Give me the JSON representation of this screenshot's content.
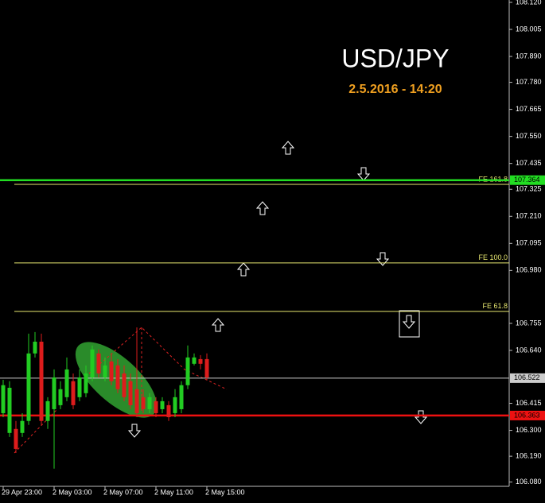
{
  "chart_data": {
    "type": "candlestick",
    "title": "USD/JPY",
    "subtitle": "2.5.2016 - 14:20",
    "up_color": "#22cc22",
    "down_color": "#dd1c1c",
    "categories": [
      "29 Apr 23:00",
      null,
      null,
      null,
      null,
      null,
      null,
      null,
      "2 May 03:00",
      null,
      null,
      null,
      null,
      null,
      null,
      null,
      "2 May 07:00",
      null,
      null,
      null,
      null,
      null,
      null,
      null,
      "2 May 11:00",
      null,
      null,
      null,
      null,
      null,
      null,
      null,
      "2 May 15:00"
    ],
    "open": [
      106.373,
      106.289,
      106.306,
      106.289,
      106.34,
      106.627,
      106.677,
      106.34,
      106.39,
      106.407,
      106.441,
      106.509,
      106.441,
      106.458,
      106.525,
      106.627,
      106.525,
      106.593,
      106.576,
      106.542,
      106.509,
      106.475,
      106.441,
      106.39,
      106.424,
      106.39,
      106.407,
      106.373,
      106.39,
      106.492,
      106.583,
      106.603,
      106.603
    ],
    "high": [
      106.515,
      106.509,
      106.34,
      106.373,
      106.711,
      106.718,
      106.711,
      106.441,
      106.559,
      106.509,
      106.61,
      106.542,
      106.559,
      106.576,
      106.661,
      106.644,
      106.61,
      106.627,
      106.603,
      106.576,
      106.542,
      106.738,
      106.475,
      106.458,
      106.441,
      106.441,
      106.424,
      106.475,
      106.509,
      106.661,
      106.627,
      106.62,
      106.627
    ],
    "low": [
      106.356,
      106.272,
      106.204,
      106.272,
      106.323,
      106.61,
      106.323,
      106.306,
      106.137,
      106.39,
      106.424,
      106.39,
      106.424,
      106.441,
      106.509,
      106.525,
      106.509,
      106.492,
      106.458,
      106.424,
      106.39,
      106.356,
      106.373,
      106.373,
      106.356,
      106.373,
      106.34,
      106.356,
      106.373,
      106.475,
      106.576,
      106.559,
      106.515
    ],
    "close": [
      106.492,
      106.481,
      106.221,
      106.34,
      106.627,
      106.677,
      106.34,
      106.424,
      106.525,
      106.475,
      106.559,
      106.407,
      106.525,
      106.542,
      106.644,
      106.542,
      106.576,
      106.509,
      106.475,
      106.441,
      106.407,
      106.373,
      106.39,
      106.441,
      106.373,
      106.424,
      106.356,
      106.441,
      106.492,
      106.61,
      106.61,
      106.583,
      106.525
    ],
    "ylim": [
      106.062,
      108.13
    ],
    "yticks": [
      {
        "value": 108.12,
        "label": "108.120"
      },
      108.005,
      {
        "value": 107.89,
        "label": "107.890"
      },
      {
        "value": 107.78,
        "label": "107.780"
      },
      107.665,
      {
        "value": 107.55,
        "label": "107.550"
      },
      107.435,
      107.325,
      {
        "value": 107.21,
        "label": "107.210"
      },
      107.095,
      {
        "value": 106.98,
        "label": "106.980"
      },
      106.755,
      {
        "value": 106.64,
        "label": "106.640"
      },
      106.415,
      {
        "value": 106.3,
        "label": "106.300"
      },
      {
        "value": 106.19,
        "label": "106.190"
      },
      {
        "value": 106.08,
        "label": "106.080"
      }
    ],
    "levels": [
      {
        "name": "FE 161.8",
        "value": 107.346,
        "color": "#e8e870"
      },
      {
        "name": "FE 100.0",
        "value": 107.012,
        "color": "#e8e870"
      },
      {
        "name": "FE 61.8",
        "value": 106.806,
        "color": "#e8e870"
      }
    ],
    "price_lines": [
      {
        "value": 107.364,
        "color": "#22dd22"
      },
      {
        "value": 106.522,
        "color": "#cccccc"
      },
      {
        "value": 106.363,
        "color": "#ee1111"
      }
    ]
  }
}
